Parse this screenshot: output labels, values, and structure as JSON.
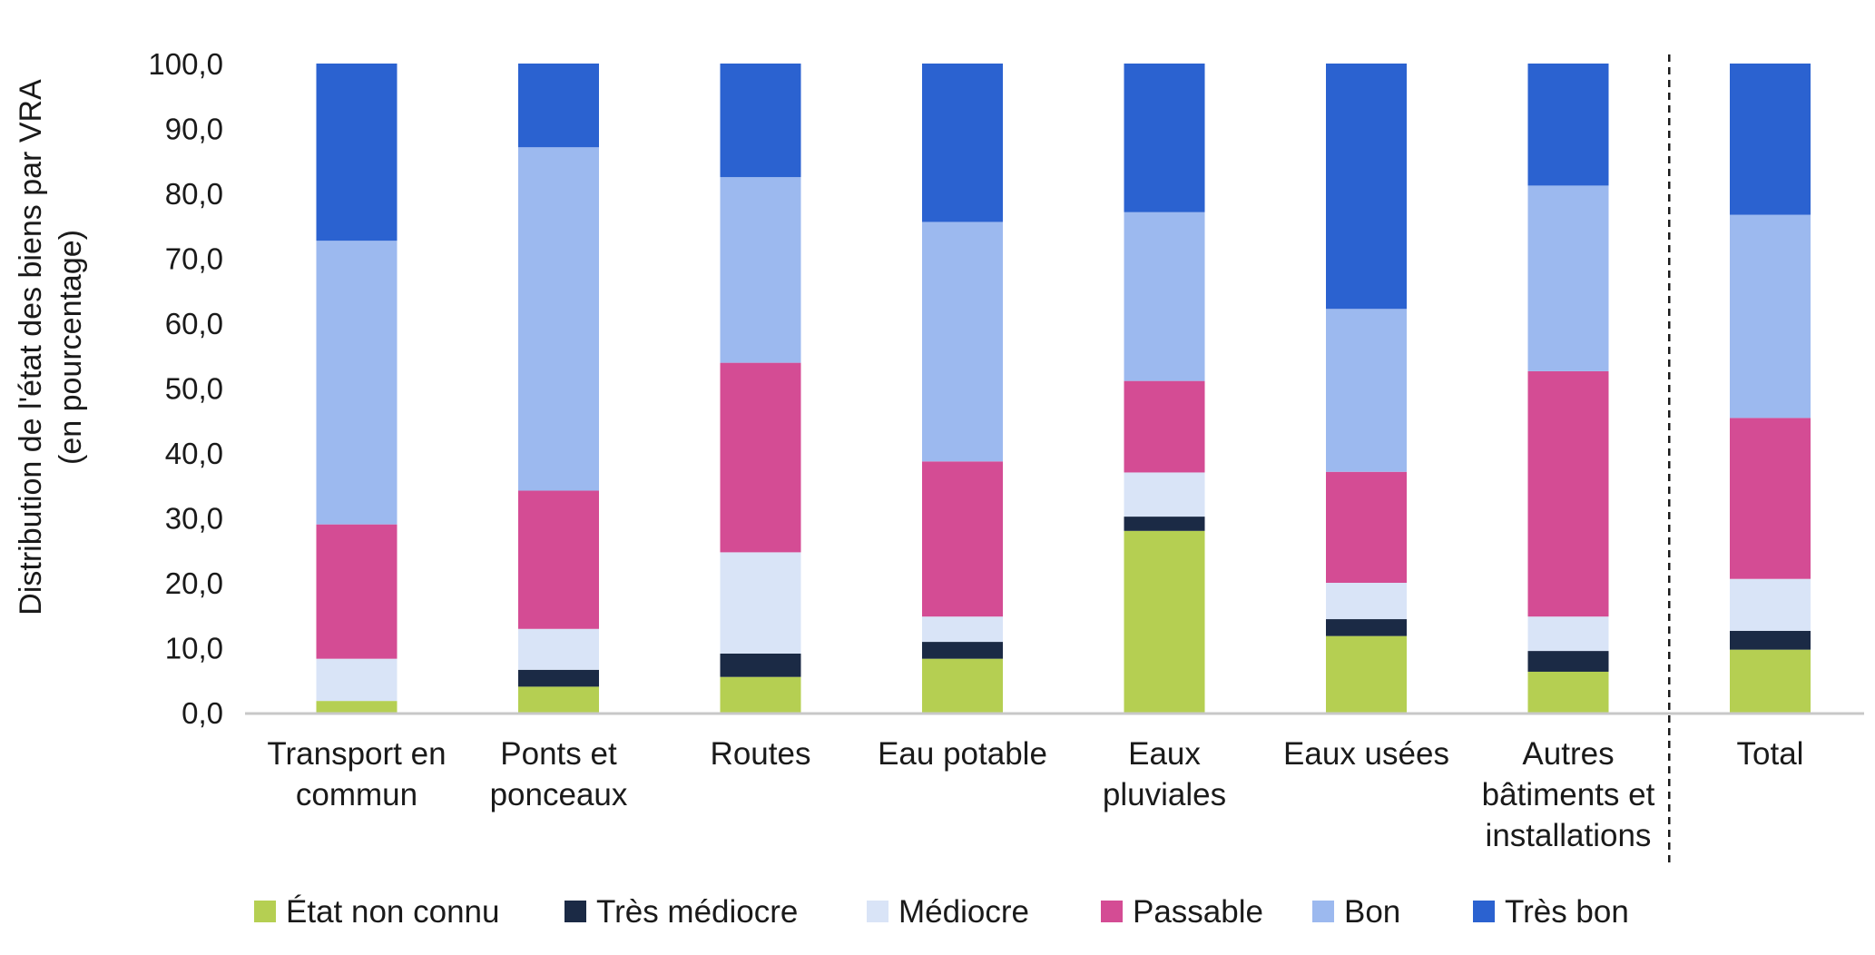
{
  "chart_data": {
    "type": "bar",
    "stacked": true,
    "ylabel": [
      "Distribution de l'état des biens par VRA",
      "(en pourcentage)"
    ],
    "xlabel": "",
    "ylim": [
      0,
      100
    ],
    "yticks": [
      "0,0",
      "10,0",
      "20,0",
      "30,0",
      "40,0",
      "50,0",
      "60,0",
      "70,0",
      "80,0",
      "90,0",
      "100,0"
    ],
    "grid": false,
    "legend_position": "bottom",
    "divider_before_last_category": true,
    "categories": [
      [
        "Transport en",
        "commun"
      ],
      [
        "Ponts et",
        "ponceaux"
      ],
      [
        "Routes"
      ],
      [
        "Eau potable"
      ],
      [
        "Eaux",
        "pluviales"
      ],
      [
        "Eaux usées"
      ],
      [
        "Autres",
        "bâtiments et",
        "installations"
      ],
      [
        "Total"
      ]
    ],
    "series": [
      {
        "name": "État non connu",
        "color": "#b5cf52",
        "values": [
          1.8,
          4.0,
          5.5,
          8.3,
          28.0,
          11.8,
          6.3,
          9.7
        ]
      },
      {
        "name": "Très médiocre",
        "color": "#1b2a45",
        "values": [
          0.0,
          2.6,
          3.6,
          2.6,
          2.2,
          2.6,
          3.2,
          2.9
        ]
      },
      {
        "name": "Médiocre",
        "color": "#d9e4f7",
        "values": [
          6.5,
          6.3,
          15.6,
          3.9,
          6.8,
          5.6,
          5.3,
          8.0
        ]
      },
      {
        "name": "Passable",
        "color": "#d44c94",
        "values": [
          20.7,
          21.3,
          29.2,
          23.9,
          14.1,
          17.1,
          37.8,
          24.8
        ]
      },
      {
        "name": "Bon",
        "color": "#9cb9ef",
        "values": [
          43.7,
          52.9,
          28.6,
          36.9,
          26.0,
          25.1,
          28.6,
          31.3
        ]
      },
      {
        "name": "Très bon",
        "color": "#2b62d0",
        "values": [
          27.3,
          12.9,
          17.5,
          24.4,
          22.9,
          37.8,
          18.8,
          23.3
        ]
      }
    ]
  }
}
